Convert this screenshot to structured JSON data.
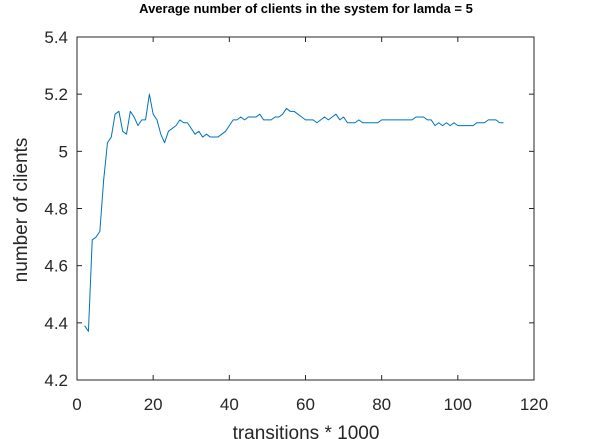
{
  "chart_data": {
    "type": "line",
    "title": "Average number of clients in the system for lamda =  5",
    "xlabel": "transitions * 1000",
    "ylabel": "number of clients",
    "xlim": [
      0,
      120
    ],
    "ylim": [
      4.2,
      5.4
    ],
    "xticks": [
      0,
      20,
      40,
      60,
      80,
      100,
      120
    ],
    "yticks": [
      4.2,
      4.4,
      4.6,
      4.8,
      5,
      5.2,
      5.4
    ],
    "xtick_labels": [
      "0",
      "20",
      "40",
      "60",
      "80",
      "100",
      "120"
    ],
    "ytick_labels": [
      "4.2",
      "4.4",
      "4.6",
      "4.8",
      "5",
      "5.2",
      "5.4"
    ],
    "grid": false,
    "series": [
      {
        "color": "#0072bd",
        "x": [
          2,
          3,
          4,
          5,
          6,
          7,
          8,
          9,
          10,
          11,
          12,
          13,
          14,
          15,
          16,
          17,
          18,
          19,
          20,
          21,
          22,
          23,
          24,
          25,
          26,
          27,
          28,
          29,
          30,
          31,
          32,
          33,
          34,
          35,
          36,
          37,
          38,
          39,
          40,
          41,
          42,
          43,
          44,
          45,
          46,
          47,
          48,
          49,
          50,
          51,
          52,
          53,
          54,
          55,
          56,
          57,
          58,
          59,
          60,
          61,
          62,
          63,
          64,
          65,
          66,
          67,
          68,
          69,
          70,
          71,
          72,
          73,
          74,
          75,
          76,
          77,
          78,
          79,
          80,
          81,
          82,
          83,
          84,
          85,
          86,
          87,
          88,
          89,
          90,
          91,
          92,
          93,
          94,
          95,
          96,
          97,
          98,
          99,
          100,
          101,
          102,
          103,
          104,
          105,
          106,
          107,
          108,
          109,
          110,
          111,
          112
        ],
        "y": [
          4.39,
          4.37,
          4.69,
          4.7,
          4.72,
          4.9,
          5.03,
          5.05,
          5.13,
          5.14,
          5.07,
          5.06,
          5.14,
          5.12,
          5.09,
          5.11,
          5.11,
          5.2,
          5.13,
          5.11,
          5.06,
          5.03,
          5.07,
          5.08,
          5.09,
          5.11,
          5.1,
          5.1,
          5.08,
          5.06,
          5.07,
          5.05,
          5.06,
          5.05,
          5.05,
          5.05,
          5.06,
          5.07,
          5.09,
          5.11,
          5.11,
          5.12,
          5.11,
          5.12,
          5.12,
          5.12,
          5.13,
          5.11,
          5.11,
          5.11,
          5.12,
          5.12,
          5.13,
          5.15,
          5.14,
          5.14,
          5.13,
          5.12,
          5.11,
          5.11,
          5.11,
          5.1,
          5.11,
          5.12,
          5.11,
          5.12,
          5.13,
          5.11,
          5.12,
          5.1,
          5.1,
          5.1,
          5.11,
          5.1,
          5.1,
          5.1,
          5.1,
          5.1,
          5.11,
          5.11,
          5.11,
          5.11,
          5.11,
          5.11,
          5.11,
          5.11,
          5.11,
          5.12,
          5.12,
          5.12,
          5.11,
          5.11,
          5.09,
          5.1,
          5.09,
          5.1,
          5.09,
          5.1,
          5.09,
          5.09,
          5.09,
          5.09,
          5.09,
          5.1,
          5.1,
          5.1,
          5.11,
          5.11,
          5.11,
          5.1,
          5.1
        ]
      }
    ]
  }
}
